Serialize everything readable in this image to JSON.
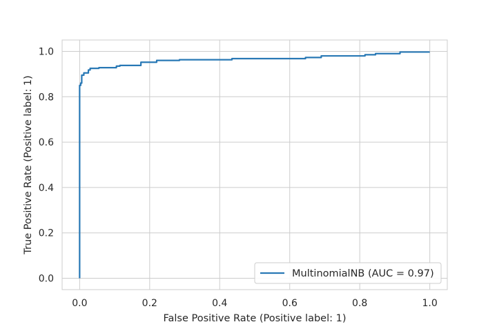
{
  "chart_data": {
    "type": "line",
    "title": "",
    "xlabel": "False Positive Rate (Positive label: 1)",
    "ylabel": "True Positive Rate (Positive label: 1)",
    "xlim": [
      -0.05,
      1.05
    ],
    "ylim": [
      -0.05,
      1.05
    ],
    "xticks": [
      0.0,
      0.2,
      0.4,
      0.6,
      0.8,
      1.0
    ],
    "yticks": [
      0.0,
      0.2,
      0.4,
      0.6,
      0.8,
      1.0
    ],
    "xtick_labels": [
      "0.0",
      "0.2",
      "0.4",
      "0.6",
      "0.8",
      "1.0"
    ],
    "ytick_labels": [
      "0.0",
      "0.2",
      "0.4",
      "0.6",
      "0.8",
      "1.0"
    ],
    "grid": true,
    "legend_position": "lower-right",
    "series": [
      {
        "name": "MultinomialNB (AUC = 0.97)",
        "color": "#2878b5",
        "x": [
          0.0,
          0.0,
          0.003,
          0.003,
          0.006,
          0.006,
          0.012,
          0.012,
          0.025,
          0.025,
          0.03,
          0.03,
          0.055,
          0.055,
          0.105,
          0.105,
          0.115,
          0.115,
          0.175,
          0.175,
          0.22,
          0.22,
          0.285,
          0.285,
          0.435,
          0.435,
          0.645,
          0.645,
          0.69,
          0.69,
          0.815,
          0.815,
          0.845,
          0.845,
          0.915,
          0.915,
          1.0
        ],
        "y": [
          0.0,
          0.85,
          0.85,
          0.86,
          0.86,
          0.895,
          0.895,
          0.905,
          0.905,
          0.918,
          0.918,
          0.925,
          0.925,
          0.928,
          0.928,
          0.935,
          0.935,
          0.938,
          0.938,
          0.952,
          0.952,
          0.96,
          0.96,
          0.963,
          0.963,
          0.968,
          0.968,
          0.973,
          0.973,
          0.98,
          0.98,
          0.985,
          0.985,
          0.99,
          0.99,
          0.997,
          0.997
        ]
      }
    ]
  }
}
